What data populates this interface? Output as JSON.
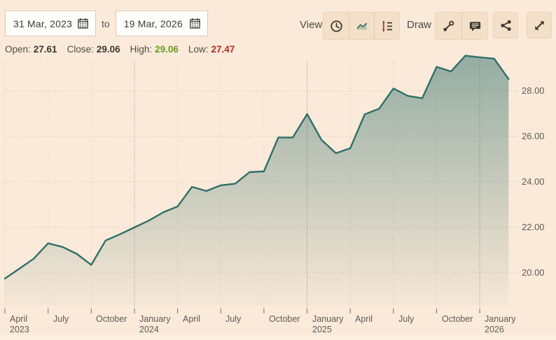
{
  "header": {
    "date_from": "31 Mar, 2023",
    "to_label": "to",
    "date_to": "19 Mar, 2026",
    "view_label": "View",
    "draw_label": "Draw"
  },
  "ohlc": {
    "open_label": "Open:",
    "open": "27.61",
    "close_label": "Close:",
    "close": "29.06",
    "high_label": "High:",
    "high": "29.06",
    "low_label": "Low:",
    "low": "27.47"
  },
  "icons": {
    "from_calendar": "calendar-icon",
    "to_calendar": "calendar-icon",
    "view_group": [
      "clock-icon",
      "area-chart-icon",
      "price-levels-icon"
    ],
    "draw_group": [
      "trend-line-icon",
      "annotation-icon"
    ],
    "share": "share-icon",
    "fullscreen": "fullscreen-icon"
  },
  "colors": {
    "background": "#fbead9",
    "line": "#2f6f6a",
    "area_top": "rgba(47,111,106,0.50)",
    "area_bottom": "rgba(47,111,106,0.02)",
    "high_value": "#679c23",
    "low_value": "#b52b20",
    "grid_light": "#d8c3b0",
    "grid_year": "#8f8e85",
    "icon_accent_maroon": "#a23a50"
  },
  "chart_data": {
    "type": "area",
    "title": "",
    "xlabel": "",
    "ylabel": "",
    "ylim": [
      19.0,
      30.0
    ],
    "grid": "dotted",
    "legend": "none",
    "range_start": "31 Mar, 2023",
    "range_end": "19 Mar, 2026",
    "categories": [
      "Apr 2023",
      "May 2023",
      "Jun 2023",
      "Jul 2023",
      "Aug 2023",
      "Sep 2023",
      "Oct 2023",
      "Nov 2023",
      "Dec 2023",
      "Jan 2024",
      "Feb 2024",
      "Mar 2024",
      "Apr 2024",
      "May 2024",
      "Jun 2024",
      "Jul 2024",
      "Aug 2024",
      "Sep 2024",
      "Oct 2024",
      "Nov 2024",
      "Dec 2024",
      "Jan 2025",
      "Feb 2025",
      "Mar 2025",
      "Apr 2025",
      "May 2025",
      "Jun 2025",
      "Jul 2025",
      "Aug 2025",
      "Sep 2025",
      "Oct 2025",
      "Nov 2025",
      "Dec 2025",
      "Jan 2026",
      "Feb 2026",
      "19 Mar 2026"
    ],
    "values": [
      19.75,
      20.18,
      20.62,
      21.3,
      21.14,
      20.83,
      20.35,
      21.42,
      21.7,
      22.0,
      22.3,
      22.66,
      22.92,
      23.78,
      23.6,
      23.85,
      23.92,
      24.43,
      24.46,
      25.95,
      25.95,
      26.98,
      25.85,
      25.26,
      25.48,
      26.97,
      27.22,
      28.11,
      27.78,
      27.68,
      29.06,
      28.86,
      29.55,
      29.48,
      29.42,
      28.52
    ],
    "x_ticks": [
      {
        "label": "April",
        "year": "2023",
        "index": 0,
        "year_boundary": false
      },
      {
        "label": "July",
        "index": 3,
        "year_boundary": false
      },
      {
        "label": "October",
        "index": 6,
        "year_boundary": false
      },
      {
        "label": "January",
        "year": "2024",
        "index": 9,
        "year_boundary": true
      },
      {
        "label": "April",
        "index": 12,
        "year_boundary": false
      },
      {
        "label": "July",
        "index": 15,
        "year_boundary": false
      },
      {
        "label": "October",
        "index": 18,
        "year_boundary": false
      },
      {
        "label": "January",
        "year": "2025",
        "index": 21,
        "year_boundary": true
      },
      {
        "label": "April",
        "index": 24,
        "year_boundary": false
      },
      {
        "label": "July",
        "index": 27,
        "year_boundary": false
      },
      {
        "label": "October",
        "index": 30,
        "year_boundary": false
      },
      {
        "label": "January",
        "year": "2026",
        "index": 33,
        "year_boundary": true
      }
    ],
    "y_ticks": [
      {
        "label": "20.00",
        "value": 20
      },
      {
        "label": "22.00",
        "value": 22
      },
      {
        "label": "24.00",
        "value": 24
      },
      {
        "label": "26.00",
        "value": 26
      },
      {
        "label": "28.00",
        "value": 28
      }
    ]
  }
}
